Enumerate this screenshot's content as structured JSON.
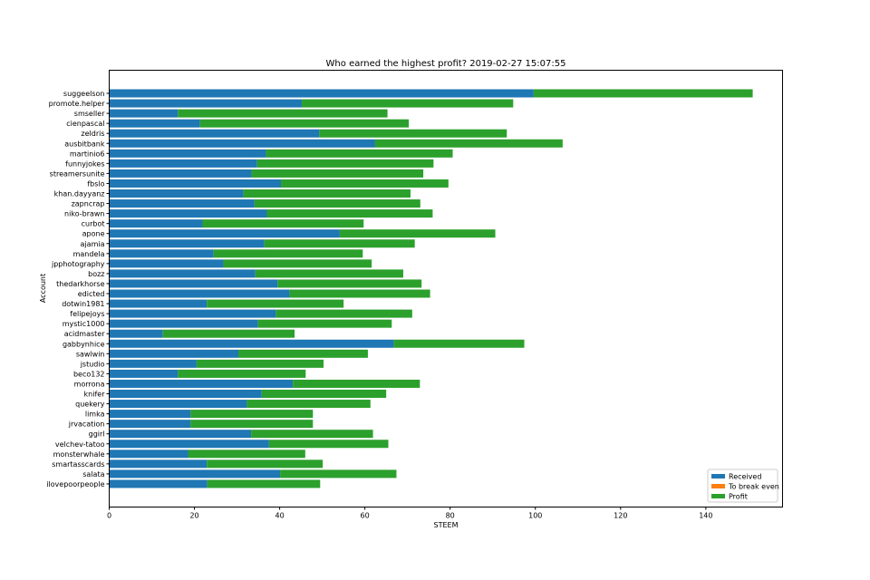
{
  "chart_data": {
    "type": "bar",
    "orientation": "horizontal",
    "stacked": true,
    "title": "Who earned the highest profit? 2019-02-27 15:07:55",
    "xlabel": "STEEM",
    "ylabel": "Account",
    "xlim": [
      0,
      158
    ],
    "xticks": [
      0,
      20,
      40,
      60,
      80,
      100,
      120,
      140
    ],
    "grid": false,
    "legend_position": "lower-right",
    "categories": [
      "suggeelson",
      "promote.helper",
      "smseller",
      "cienpascal",
      "zeldris",
      "ausbitbank",
      "martinio6",
      "funnyjokes",
      "streamersunite",
      "fbslo",
      "khan.dayyanz",
      "zapncrap",
      "niko-brawn",
      "curbot",
      "apone",
      "ajamia",
      "mandela",
      "jpphotography",
      "bozz",
      "thedarkhorse",
      "edicted",
      "dotwin1981",
      "felipejoys",
      "mystic1000",
      "acidmaster",
      "gabbynhice",
      "sawlwin",
      "jstudio",
      "beco132",
      "morrona",
      "knifer",
      "quekery",
      "limka",
      "jrvacation",
      "ggirl",
      "velchev-tatoo",
      "monsterwhale",
      "smartasscards",
      "salata",
      "ilovepoorpeople"
    ],
    "series": [
      {
        "name": "Received",
        "color": "#1f77b4",
        "values": [
          99.6,
          45.2,
          16.1,
          21.3,
          49.3,
          62.4,
          36.8,
          34.7,
          33.4,
          40.3,
          31.5,
          34.1,
          37.0,
          21.9,
          54.1,
          36.4,
          24.5,
          26.8,
          34.3,
          39.5,
          42.3,
          22.9,
          39.1,
          34.9,
          12.6,
          66.8,
          30.3,
          20.5,
          16.1,
          43.1,
          35.8,
          32.3,
          19.1,
          19.1,
          33.3,
          37.5,
          18.5,
          22.9,
          40.1,
          23.0
        ]
      },
      {
        "name": "To break even",
        "color": "#ff7f0e",
        "values": [
          0,
          0,
          0,
          0,
          0,
          0,
          0,
          0,
          0,
          0,
          0,
          0,
          0,
          0,
          0,
          0,
          0,
          0,
          0,
          0,
          0,
          0,
          0,
          0,
          0,
          0,
          0,
          0,
          0,
          0,
          0,
          0,
          0,
          0,
          0,
          0,
          0,
          0,
          0,
          0
        ]
      },
      {
        "name": "Profit",
        "color": "#2ca02c",
        "values": [
          51.4,
          49.6,
          49.2,
          49.0,
          44.0,
          44.0,
          43.8,
          41.4,
          40.3,
          39.3,
          39.2,
          38.9,
          38.9,
          37.8,
          36.5,
          35.3,
          35.0,
          34.8,
          34.7,
          33.8,
          33.0,
          32.1,
          32.0,
          31.4,
          30.9,
          30.6,
          30.4,
          29.8,
          30.0,
          29.8,
          29.2,
          29.0,
          28.7,
          28.7,
          28.6,
          28.0,
          27.5,
          27.2,
          27.3,
          26.5
        ]
      }
    ]
  }
}
